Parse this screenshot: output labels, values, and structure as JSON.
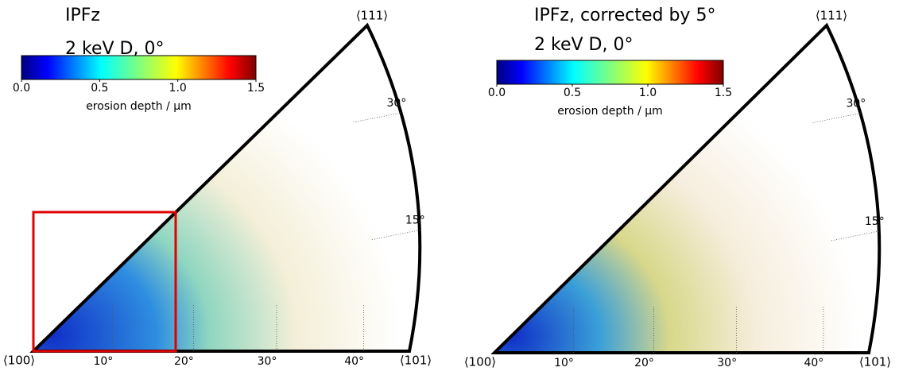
{
  "chart_data": [
    {
      "type": "ipf",
      "title": "IPFz",
      "subtitle": "2 keV D, 0°",
      "corner_labels": [
        "⟨100⟩",
        "⟨101⟩",
        "⟨111⟩"
      ],
      "colorbar": {
        "label": "erosion depth / µm",
        "lim": [
          0,
          1.5
        ],
        "ticks": [
          {
            "value": 0,
            "label": "0.0"
          },
          0.5,
          {
            "value": 1,
            "label": "1.0"
          },
          1.5
        ]
      },
      "xticks": [
        {
          "value": 10,
          "label": "10°"
        },
        {
          "value": 20,
          "label": "20°"
        },
        {
          "value": 30,
          "label": "30°"
        },
        {
          "value": 40,
          "label": "40°"
        }
      ],
      "arcticks": [
        {
          "value": 15,
          "label": "15°"
        },
        {
          "value": 30,
          "label": "30°"
        }
      ]
    },
    {
      "type": "ipf",
      "title": "IPFz,  corrected by 5°",
      "subtitle": "2 keV D, 0°",
      "corner_labels": [
        "⟨100⟩",
        "⟨101⟩",
        "⟨111⟩"
      ],
      "colorbar": {
        "label": "erosion depth / µm",
        "lim": [
          0,
          1.5
        ],
        "ticks": [
          {
            "value": 0,
            "label": "0.0"
          },
          0.5,
          {
            "value": 1,
            "label": "1.0"
          },
          1.5
        ]
      },
      "xticks": [
        {
          "value": 10,
          "label": "10°"
        },
        {
          "value": 20,
          "label": "20°"
        },
        {
          "value": 30,
          "label": "30°"
        },
        {
          "value": 40,
          "label": "40°"
        }
      ],
      "arcticks": [
        {
          "value": 15,
          "label": "15°"
        },
        {
          "value": 30,
          "label": "30°"
        }
      ]
    }
  ]
}
